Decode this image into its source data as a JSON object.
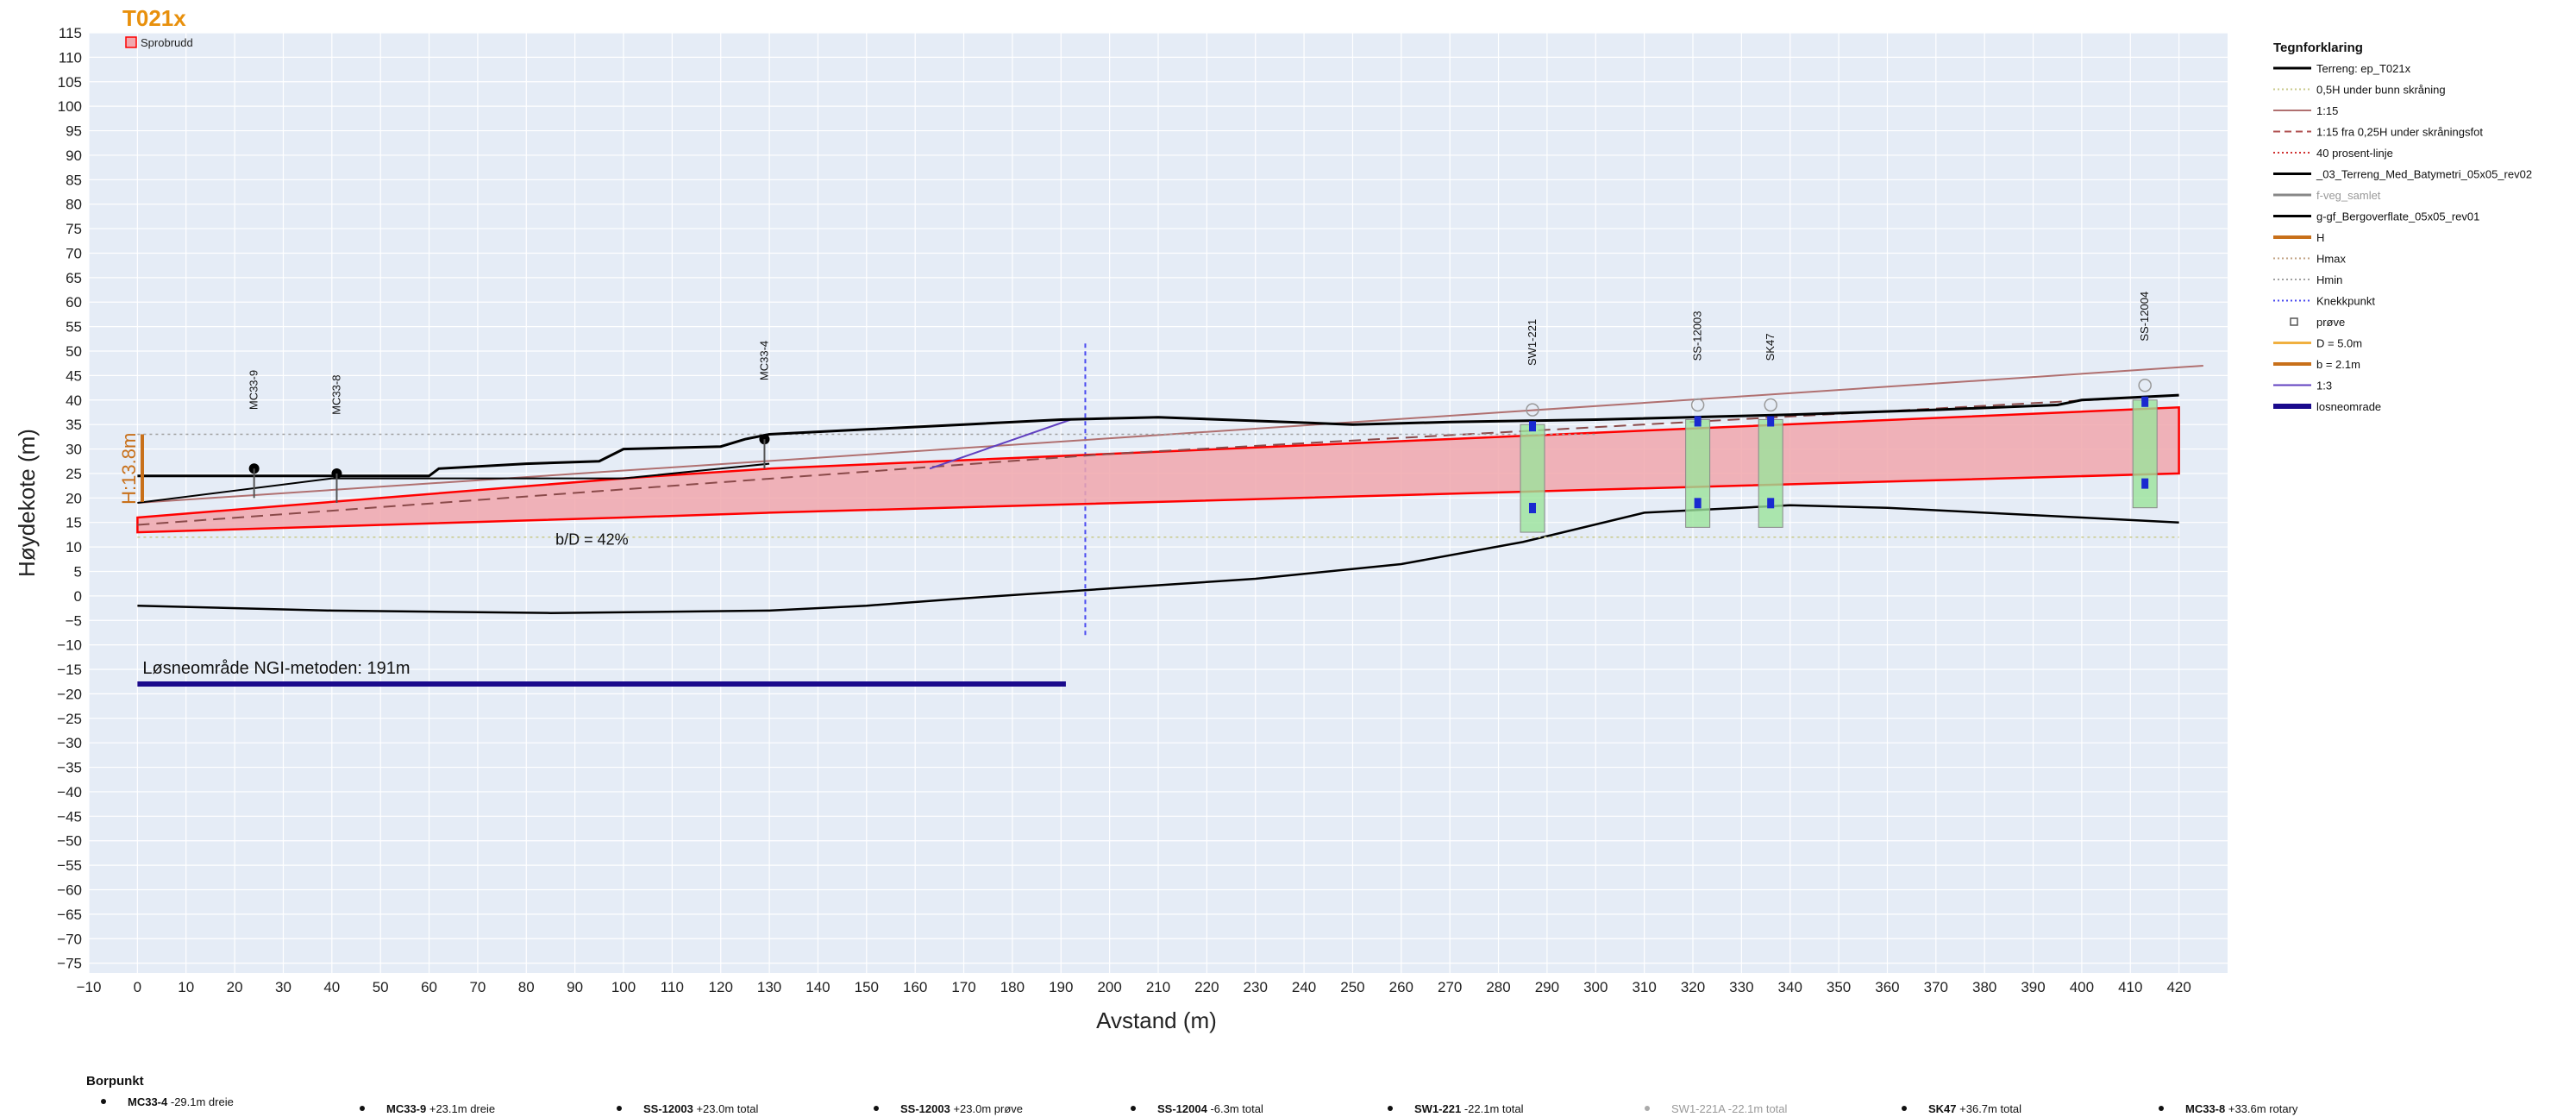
{
  "page": {
    "title": "T021x",
    "badge": "Sprobrudd"
  },
  "colors": {
    "plot_bg": "#e5ecf6",
    "grid": "#ffffff",
    "title": "#e8900c",
    "zone_fill": "#f1a7ad",
    "zone_line": "#ff0000",
    "terrain": "#000000",
    "loose_area": "#1a0a8c",
    "knick": "#4a4af0",
    "h_line": "#c8701a"
  },
  "chart_data": {
    "type": "line",
    "xlabel": "Avstand (m)",
    "ylabel": "Høydekote (m)",
    "xlim": [
      -10,
      430
    ],
    "ylim": [
      -77,
      115
    ],
    "xticks": [
      -10,
      0,
      10,
      20,
      30,
      40,
      50,
      60,
      70,
      80,
      90,
      100,
      110,
      120,
      130,
      140,
      150,
      160,
      170,
      180,
      190,
      200,
      210,
      220,
      230,
      240,
      250,
      260,
      270,
      280,
      290,
      300,
      310,
      320,
      330,
      340,
      350,
      360,
      370,
      380,
      390,
      400,
      410,
      420
    ],
    "yticks": [
      115,
      110,
      105,
      100,
      95,
      90,
      85,
      80,
      75,
      70,
      65,
      60,
      55,
      50,
      45,
      40,
      35,
      30,
      25,
      20,
      15,
      10,
      5,
      0,
      -5,
      -10,
      -15,
      -20,
      -25,
      -30,
      -35,
      -40,
      -45,
      -50,
      -55,
      -60,
      -65,
      -70,
      -75
    ],
    "grid": true,
    "legend_position": "right",
    "series": {
      "terrain": [
        [
          0,
          24.5
        ],
        [
          60,
          24.5
        ],
        [
          62,
          26
        ],
        [
          80,
          27
        ],
        [
          95,
          27.5
        ],
        [
          100,
          30
        ],
        [
          120,
          30.5
        ],
        [
          125,
          32
        ],
        [
          130,
          33
        ],
        [
          150,
          34
        ],
        [
          170,
          35
        ],
        [
          190,
          36
        ],
        [
          210,
          36.5
        ],
        [
          250,
          35
        ],
        [
          270,
          35.5
        ],
        [
          300,
          36
        ],
        [
          340,
          37
        ],
        [
          370,
          38
        ],
        [
          395,
          39
        ],
        [
          400,
          40
        ],
        [
          420,
          41
        ]
      ],
      "terrain_tail": [
        [
          0,
          19
        ],
        [
          40,
          24
        ],
        [
          100,
          24
        ],
        [
          120,
          26
        ],
        [
          130,
          27
        ]
      ],
      "bedrock": [
        [
          0,
          -2
        ],
        [
          40,
          -3
        ],
        [
          85,
          -3.5
        ],
        [
          130,
          -3
        ],
        [
          150,
          -2
        ],
        [
          170,
          -0.5
        ],
        [
          200,
          1.5
        ],
        [
          230,
          3.5
        ],
        [
          260,
          6.5
        ],
        [
          285,
          11
        ],
        [
          310,
          17
        ],
        [
          340,
          18.5
        ],
        [
          360,
          18
        ],
        [
          400,
          16
        ],
        [
          420,
          15
        ]
      ],
      "zone_upper": [
        [
          0,
          16
        ],
        [
          100,
          24
        ],
        [
          130,
          26
        ],
        [
          420,
          38.5
        ]
      ],
      "zone_lower": [
        [
          0,
          13
        ],
        [
          100,
          16
        ],
        [
          130,
          17
        ],
        [
          420,
          25
        ]
      ],
      "slope_1_15": [
        [
          0,
          19
        ],
        [
          425,
          47
        ]
      ],
      "slope_1_15_dashed": [
        [
          0,
          14.5
        ],
        [
          200,
          29
        ],
        [
          420,
          41
        ]
      ],
      "hmax_line": [
        [
          0,
          33
        ],
        [
          300,
          33
        ]
      ],
      "bottom_dotted": [
        [
          0,
          12
        ],
        [
          420,
          12
        ]
      ],
      "slope_1_3": [
        [
          163,
          26
        ],
        [
          192,
          36
        ]
      ],
      "knick_x": 195,
      "knick_y": [
        -8,
        52
      ],
      "loose_area": {
        "x": [
          0,
          191
        ],
        "y": -18
      }
    },
    "annotations": {
      "h_label": "H:13.8m",
      "bd_label": "b/D = 42%",
      "loose_label": "Løsneområde NGI-metoden: 191m"
    },
    "boreholes": [
      {
        "name": "MC33-9",
        "x": 24,
        "top": 26
      },
      {
        "name": "MC33-8",
        "x": 41,
        "top": 25
      },
      {
        "name": "MC33-4",
        "x": 129,
        "top": 32
      },
      {
        "name": "SW1-221",
        "x": 287,
        "top": 35
      },
      {
        "name": "SS-12003",
        "x": 321,
        "top": 36
      },
      {
        "name": "SK47",
        "x": 336,
        "top": 36
      },
      {
        "name": "SS-12004",
        "x": 413,
        "top": 40
      }
    ],
    "legend": {
      "title": "Tegnforklaring",
      "items": [
        {
          "label": "Terreng: ep_T021x",
          "color": "#000000",
          "style": "solid",
          "width": 3
        },
        {
          "label": "0,5H under bunn skråning",
          "color": "#c9c98a",
          "style": "dotted",
          "width": 2
        },
        {
          "label": "1:15",
          "color": "#b07070",
          "style": "solid",
          "width": 2
        },
        {
          "label": "1:15 fra 0,25H under skråningsfot",
          "color": "#b05050",
          "style": "dashed",
          "width": 2
        },
        {
          "label": "40 prosent-linje",
          "color": "#d03030",
          "style": "dotted",
          "width": 2
        },
        {
          "label": "_03_Terreng_Med_Batymetri_05x05_rev02",
          "color": "#000000",
          "style": "solid",
          "width": 3
        },
        {
          "label": "f-veg_samlet",
          "color": "#888888",
          "style": "solid",
          "width": 3,
          "muted": true
        },
        {
          "label": "g-gf_Bergoverflate_05x05_rev01",
          "color": "#000000",
          "style": "solid",
          "width": 3
        },
        {
          "label": "H",
          "color": "#c8701a",
          "style": "solid",
          "width": 4
        },
        {
          "label": "Hmax",
          "color": "#c0a080",
          "style": "dotted",
          "width": 2
        },
        {
          "label": "Hmin",
          "color": "#a0a0a0",
          "style": "dotted",
          "width": 2
        },
        {
          "label": "Knekkpunkt",
          "color": "#4a4af0",
          "style": "dotted",
          "width": 2
        },
        {
          "label": "prøve",
          "color": "#555555",
          "style": "marker",
          "width": 2
        },
        {
          "label": "D = 5.0m",
          "color": "#f0b040",
          "style": "solid",
          "width": 3
        },
        {
          "label": "b = 2.1m",
          "color": "#c8701a",
          "style": "solid",
          "width": 4
        },
        {
          "label": "1:3",
          "color": "#6040c0",
          "style": "solid",
          "width": 2
        },
        {
          "label": "losneomrade",
          "color": "#1a0a8c",
          "style": "solid",
          "width": 6
        }
      ]
    },
    "borpunkt": {
      "title": "Borpunkt",
      "items": [
        {
          "name": "MC33-4",
          "desc": "-29.1m dreie"
        },
        {
          "name": "MC33-9",
          "desc": "+23.1m dreie"
        },
        {
          "name": "SS-12003",
          "desc": "+23.0m total"
        },
        {
          "name": "SS-12003",
          "desc": "+23.0m prøve"
        },
        {
          "name": "SS-12004",
          "desc": "-6.3m total"
        },
        {
          "name": "SW1-221",
          "desc": "-22.1m total"
        },
        {
          "name": "SW1-221A",
          "desc": "-22.1m total",
          "muted": true
        },
        {
          "name": "SK47",
          "desc": "+36.7m total"
        },
        {
          "name": "MC33-8",
          "desc": "+33.6m rotary"
        }
      ]
    }
  }
}
